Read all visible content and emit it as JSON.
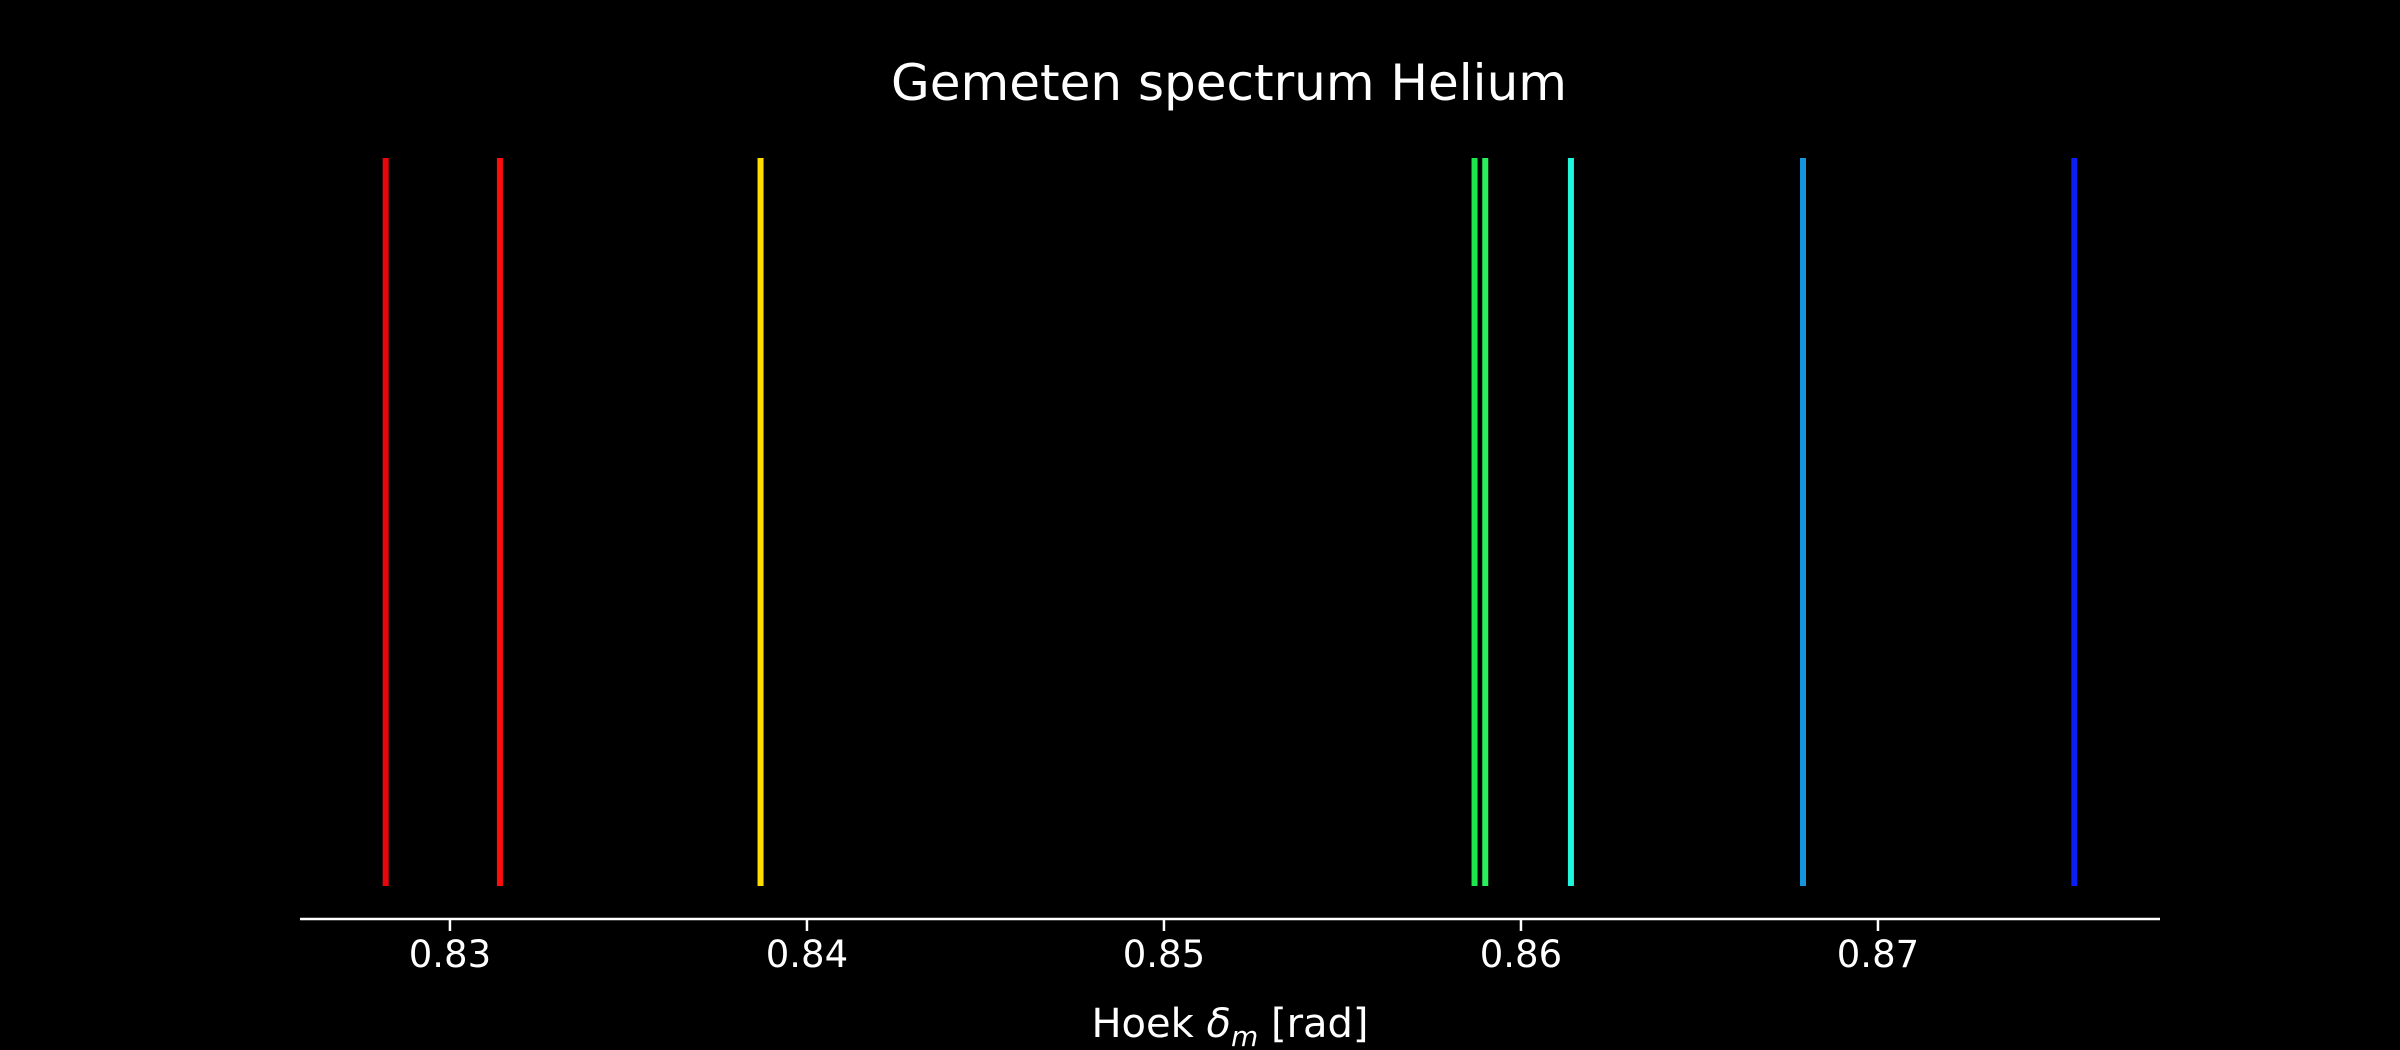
{
  "chart_data": {
    "type": "spectrum-lines",
    "title": "Gemeten spectrum Helium",
    "xlabel": {
      "prefix": "Hoek ",
      "symbol": "δ",
      "subscript": "m",
      "suffix": " [rad]"
    },
    "xlim": [
      0.8258,
      0.8779
    ],
    "ticks": [
      0.83,
      0.84,
      0.85,
      0.86,
      0.87
    ],
    "tick_labels": [
      "0.83",
      "0.84",
      "0.85",
      "0.86",
      "0.87"
    ],
    "grid": false,
    "lines": [
      {
        "x": 0.8282,
        "color": "#e8080c"
      },
      {
        "x": 0.8314,
        "color": "#ff0d0d"
      },
      {
        "x": 0.8387,
        "color": "#ffdd00"
      },
      {
        "x": 0.8587,
        "color": "#1de64a"
      },
      {
        "x": 0.859,
        "color": "#29ef5c"
      },
      {
        "x": 0.8614,
        "color": "#1ff6dd"
      },
      {
        "x": 0.8679,
        "color": "#1595dc"
      },
      {
        "x": 0.8755,
        "color": "#0d1ff0"
      }
    ]
  }
}
